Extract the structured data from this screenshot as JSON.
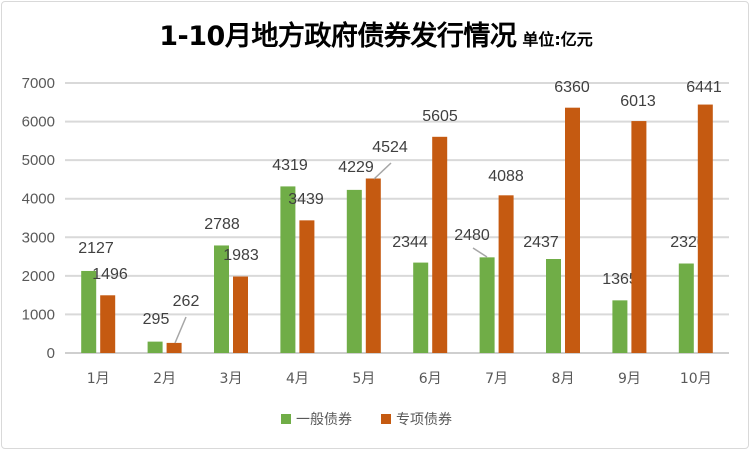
{
  "chart_data": {
    "type": "bar",
    "title": "1-10月地方政府债券发行情况",
    "subtitle": "单位:亿元",
    "xlabel": "",
    "ylabel": "",
    "categories": [
      "1月",
      "2月",
      "3月",
      "4月",
      "5月",
      "6月",
      "7月",
      "8月",
      "9月",
      "10月"
    ],
    "series": [
      {
        "name": "一般债券",
        "color": "#70ad47",
        "values": [
          2127,
          295,
          2788,
          4319,
          4229,
          2344,
          2480,
          2437,
          1365,
          2320
        ]
      },
      {
        "name": "专项债券",
        "color": "#c55a11",
        "values": [
          1496,
          262,
          1983,
          3439,
          4524,
          5605,
          4088,
          6360,
          6013,
          6441
        ]
      }
    ],
    "ylim": [
      0,
      7000
    ],
    "yticks": [
      0,
      1000,
      2000,
      3000,
      4000,
      5000,
      6000,
      7000
    ],
    "grid": true,
    "legend": "bottom"
  }
}
